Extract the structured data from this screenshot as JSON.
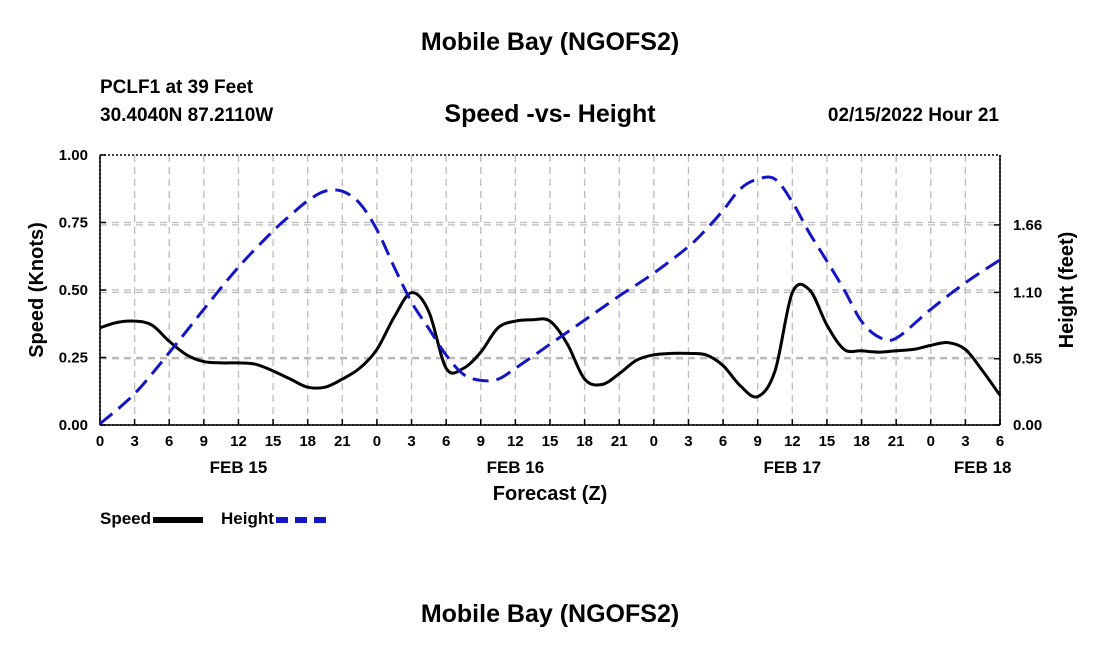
{
  "header": {
    "title": "Mobile Bay (NGOFS2)",
    "station": "PCLF1 at 39 Feet",
    "coords": "30.4040N  87.2110W",
    "subtitle": "Speed -vs- Height",
    "datetime": "02/15/2022 Hour 21"
  },
  "footer": {
    "title": "Mobile Bay (NGOFS2)"
  },
  "legend": {
    "speed": "Speed",
    "height": "Height"
  },
  "chart_data": {
    "type": "line",
    "title": "Speed -vs- Height",
    "xlabel": "Forecast (Z)",
    "ylabel": "Speed (Knots)",
    "y2label": "Height (feet)",
    "xlim": [
      0,
      78
    ],
    "ylim": [
      0,
      1.0
    ],
    "y2lim": [
      0,
      2.24
    ],
    "grid": true,
    "x_ticks": [
      0,
      3,
      6,
      9,
      12,
      15,
      18,
      21,
      24,
      27,
      30,
      33,
      36,
      39,
      42,
      45,
      48,
      51,
      54,
      57,
      60,
      63,
      66,
      69,
      72,
      75,
      78
    ],
    "x_tick_labels": [
      "0",
      "3",
      "6",
      "9",
      "12",
      "15",
      "18",
      "21",
      "0",
      "3",
      "6",
      "9",
      "12",
      "15",
      "18",
      "21",
      "0",
      "3",
      "6",
      "9",
      "12",
      "15",
      "18",
      "21",
      "0",
      "3",
      "6"
    ],
    "date_labels": [
      {
        "label": "FEB 15",
        "x": 12
      },
      {
        "label": "FEB 16",
        "x": 36
      },
      {
        "label": "FEB 17",
        "x": 60
      },
      {
        "label": "FEB 18",
        "x": 76.5
      }
    ],
    "y_ticks": [
      0,
      0.25,
      0.5,
      0.75,
      1.0
    ],
    "y_tick_labels": [
      "0.00",
      "0.25",
      "0.50",
      "0.75",
      "1.00"
    ],
    "y2_ticks": [
      0,
      0.55,
      1.1,
      1.66
    ],
    "y2_tick_labels": [
      "0.00",
      "0.55",
      "1.10",
      "1.66"
    ],
    "series": [
      {
        "name": "Speed",
        "axis": "left",
        "color": "#000000",
        "x": [
          0,
          1.5,
          3,
          4.5,
          6,
          7.5,
          9,
          10.5,
          12,
          13.5,
          15,
          16.5,
          18,
          19.5,
          21,
          22.5,
          24,
          25.5,
          27,
          28.5,
          30,
          31.5,
          33,
          34.5,
          36,
          37.5,
          39,
          40.5,
          42,
          43.5,
          45,
          46.5,
          48,
          49.5,
          51,
          52.5,
          54,
          55.5,
          57,
          58.5,
          60,
          61.5,
          63,
          64.5,
          66,
          67.5,
          69,
          70.5,
          72,
          73.5,
          75,
          76.5,
          78
        ],
        "values": [
          0.36,
          0.38,
          0.385,
          0.37,
          0.31,
          0.26,
          0.235,
          0.23,
          0.23,
          0.225,
          0.2,
          0.17,
          0.14,
          0.14,
          0.17,
          0.21,
          0.28,
          0.4,
          0.49,
          0.42,
          0.21,
          0.21,
          0.27,
          0.36,
          0.385,
          0.39,
          0.385,
          0.3,
          0.17,
          0.15,
          0.19,
          0.24,
          0.26,
          0.265,
          0.265,
          0.26,
          0.22,
          0.145,
          0.105,
          0.2,
          0.49,
          0.5,
          0.37,
          0.28,
          0.275,
          0.27,
          0.275,
          0.28,
          0.295,
          0.305,
          0.28,
          0.2,
          0.11
        ]
      },
      {
        "name": "Height",
        "axis": "right",
        "color": "#1515c8",
        "x": [
          0,
          3,
          6,
          9,
          12,
          15,
          16.5,
          18,
          19.5,
          21,
          22.5,
          24,
          25.5,
          27,
          28.5,
          30,
          31.5,
          33,
          34.5,
          36,
          39,
          42,
          45,
          48,
          51,
          52.5,
          54,
          55.5,
          57,
          58.5,
          60,
          61.5,
          63,
          64.5,
          66,
          67.5,
          69,
          72,
          75,
          78
        ],
        "values": [
          0.01,
          0.26,
          0.6,
          0.96,
          1.31,
          1.61,
          1.74,
          1.86,
          1.94,
          1.94,
          1.84,
          1.62,
          1.31,
          1.02,
          0.8,
          0.58,
          0.42,
          0.37,
          0.38,
          0.47,
          0.67,
          0.87,
          1.07,
          1.26,
          1.48,
          1.62,
          1.78,
          1.96,
          2.04,
          2.04,
          1.85,
          1.59,
          1.36,
          1.12,
          0.86,
          0.73,
          0.72,
          0.96,
          1.18,
          1.37
        ]
      }
    ]
  }
}
